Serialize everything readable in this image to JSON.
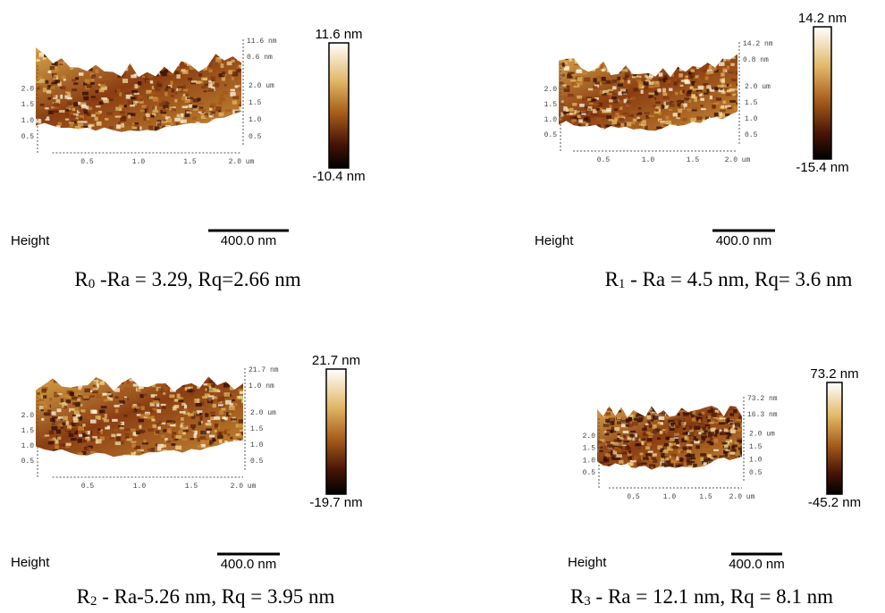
{
  "panels": [
    {
      "surface": {
        "x_ticks": [
          "0.5",
          "1.0",
          "1.5",
          "2.0 um"
        ],
        "y_ticks": [
          "2.0 um",
          "1.5",
          "1.0",
          "0.5"
        ],
        "left_ticks": [
          "2.0",
          "1.5",
          "1.0",
          "0.5"
        ],
        "z_ticks": [
          "11.6 nm",
          "0.6 nm"
        ]
      },
      "colorbar": {
        "max": "11.6 nm",
        "min": "-10.4 nm"
      },
      "channel": "Height",
      "scale_bar": "400.0 nm",
      "caption": {
        "symbol": "R",
        "subscript": "0",
        "text": " -Ra = 3.29, Rq=2.66 nm"
      }
    },
    {
      "surface": {
        "x_ticks": [
          "0.5",
          "1.0",
          "1.5",
          "2.0 um"
        ],
        "y_ticks": [
          "2.0 um",
          "1.5",
          "1.0",
          "0.5"
        ],
        "left_ticks": [
          "2.0",
          "1.5",
          "1.0",
          "0.5"
        ],
        "z_ticks": [
          "14.2 nm",
          "0.8 nm"
        ]
      },
      "colorbar": {
        "max": "14.2 nm",
        "min": "-15.4 nm"
      },
      "channel": "Height",
      "scale_bar": "400.0 nm",
      "caption": {
        "symbol": "R",
        "subscript": "1",
        "text": " - Ra = 4.5 nm, Rq= 3.6 nm"
      }
    },
    {
      "surface": {
        "x_ticks": [
          "0.5",
          "1.0",
          "1.5",
          "2.0 um"
        ],
        "y_ticks": [
          "2.0 um",
          "1.5",
          "1.0",
          "0.5"
        ],
        "left_ticks": [
          "2.0",
          "1.5",
          "1.0",
          "0.5"
        ],
        "z_ticks": [
          "21.7 nm",
          "1.0 nm"
        ]
      },
      "colorbar": {
        "max": "21.7 nm",
        "min": "-19.7 nm"
      },
      "channel": "Height",
      "scale_bar": "400.0 nm",
      "caption": {
        "symbol": "R",
        "subscript": "2",
        "text": " - Ra-5.26 nm, Rq = 3.95 nm"
      }
    },
    {
      "surface": {
        "x_ticks": [
          "0.5",
          "1.0",
          "1.5",
          "2.0 um"
        ],
        "y_ticks": [
          "2.0 um",
          "1.5",
          "1.0",
          "0.5"
        ],
        "left_ticks": [
          "2.0",
          "1.5",
          "1.0",
          "0.5"
        ],
        "z_ticks": [
          "73.2 nm",
          "16.3 nm"
        ]
      },
      "colorbar": {
        "max": "73.2 nm",
        "min": "-45.2 nm"
      },
      "channel": "Height",
      "scale_bar": "400.0 nm",
      "caption": {
        "symbol": "R",
        "subscript": "3",
        "text": " - Ra = 12.1 nm, Rq = 8.1 nm"
      }
    }
  ]
}
